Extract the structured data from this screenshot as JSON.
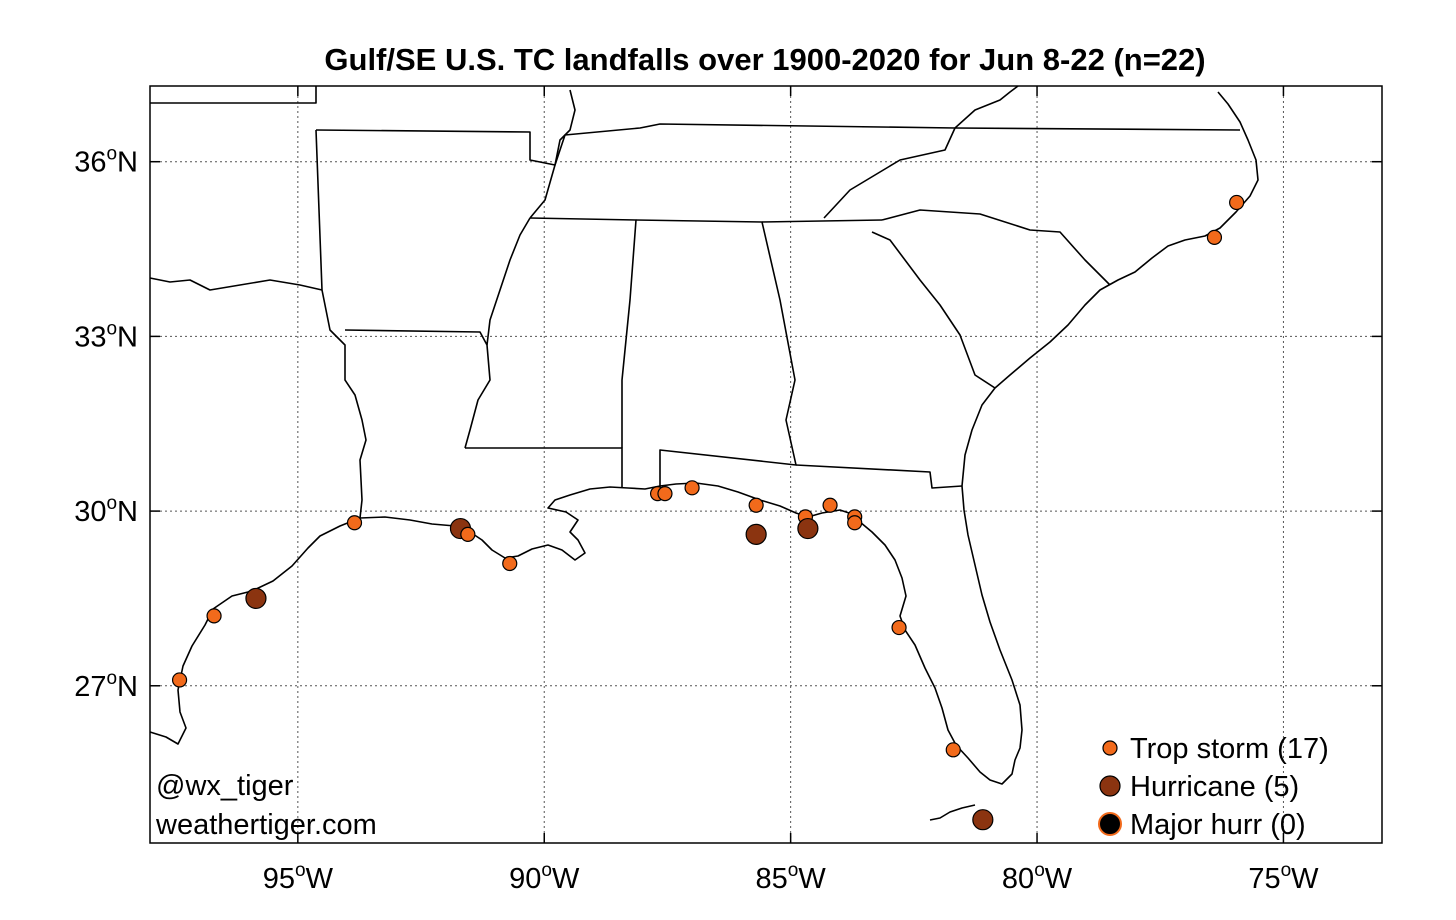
{
  "title": "Gulf/SE U.S. TC landfalls over 1900-2020 for Jun 8-22 (n=22)",
  "credit": {
    "handle": "@wx_tiger",
    "site": "weathertiger.com"
  },
  "axes": {
    "lon_range": [
      -98.0,
      -73.0
    ],
    "lat_range": [
      24.3,
      37.3
    ],
    "lon_ticks": [
      {
        "value": -95,
        "main": "95",
        "sup": "o",
        "suffix": "W"
      },
      {
        "value": -90,
        "main": "90",
        "sup": "o",
        "suffix": "W"
      },
      {
        "value": -85,
        "main": "85",
        "sup": "o",
        "suffix": "W"
      },
      {
        "value": -80,
        "main": "80",
        "sup": "o",
        "suffix": "W"
      },
      {
        "value": -75,
        "main": "75",
        "sup": "o",
        "suffix": "W"
      }
    ],
    "lat_ticks": [
      {
        "value": 36,
        "main": "36",
        "sup": "o",
        "suffix": "N"
      },
      {
        "value": 33,
        "main": "33",
        "sup": "o",
        "suffix": "N"
      },
      {
        "value": 30,
        "main": "30",
        "sup": "o",
        "suffix": "N"
      },
      {
        "value": 27,
        "main": "27",
        "sup": "o",
        "suffix": "N"
      }
    ],
    "grid": true
  },
  "colors": {
    "trop_storm": "#f26a1b",
    "hurricane": "#8b3410",
    "major": "#000000",
    "major_edge": "#f26a1b"
  },
  "legend": {
    "placement": "bottom-right",
    "entries": [
      {
        "key": "trop_storm",
        "label": "Trop storm (17)"
      },
      {
        "key": "hurricane",
        "label": "Hurricane (5)"
      },
      {
        "key": "major",
        "label": "Major hurr (0)"
      }
    ]
  },
  "landfalls": [
    {
      "lon": -97.4,
      "lat": 27.1,
      "cat": "trop_storm"
    },
    {
      "lon": -96.7,
      "lat": 28.2,
      "cat": "trop_storm"
    },
    {
      "lon": -95.85,
      "lat": 28.5,
      "cat": "hurricane"
    },
    {
      "lon": -93.85,
      "lat": 29.8,
      "cat": "trop_storm"
    },
    {
      "lon": -91.7,
      "lat": 29.7,
      "cat": "hurricane"
    },
    {
      "lon": -90.7,
      "lat": 29.1,
      "cat": "trop_storm"
    },
    {
      "lon": -87.7,
      "lat": 30.3,
      "cat": "trop_storm"
    },
    {
      "lon": -87.55,
      "lat": 30.3,
      "cat": "trop_storm"
    },
    {
      "lon": -87.0,
      "lat": 30.4,
      "cat": "trop_storm"
    },
    {
      "lon": -85.7,
      "lat": 30.1,
      "cat": "trop_storm"
    },
    {
      "lon": -85.7,
      "lat": 29.6,
      "cat": "hurricane"
    },
    {
      "lon": -84.7,
      "lat": 29.9,
      "cat": "trop_storm"
    },
    {
      "lon": -84.65,
      "lat": 29.7,
      "cat": "hurricane"
    },
    {
      "lon": -84.2,
      "lat": 30.1,
      "cat": "trop_storm"
    },
    {
      "lon": -83.7,
      "lat": 29.9,
      "cat": "trop_storm"
    },
    {
      "lon": -83.7,
      "lat": 29.8,
      "cat": "trop_storm"
    },
    {
      "lon": -82.8,
      "lat": 28.0,
      "cat": "trop_storm"
    },
    {
      "lon": -81.7,
      "lat": 25.9,
      "cat": "trop_storm"
    },
    {
      "lon": -81.1,
      "lat": 24.7,
      "cat": "hurricane"
    },
    {
      "lon": -76.4,
      "lat": 34.7,
      "cat": "trop_storm"
    },
    {
      "lon": -75.95,
      "lat": 35.3,
      "cat": "trop_storm"
    },
    {
      "lon": -91.55,
      "lat": 29.6,
      "cat": "trop_storm"
    }
  ]
}
